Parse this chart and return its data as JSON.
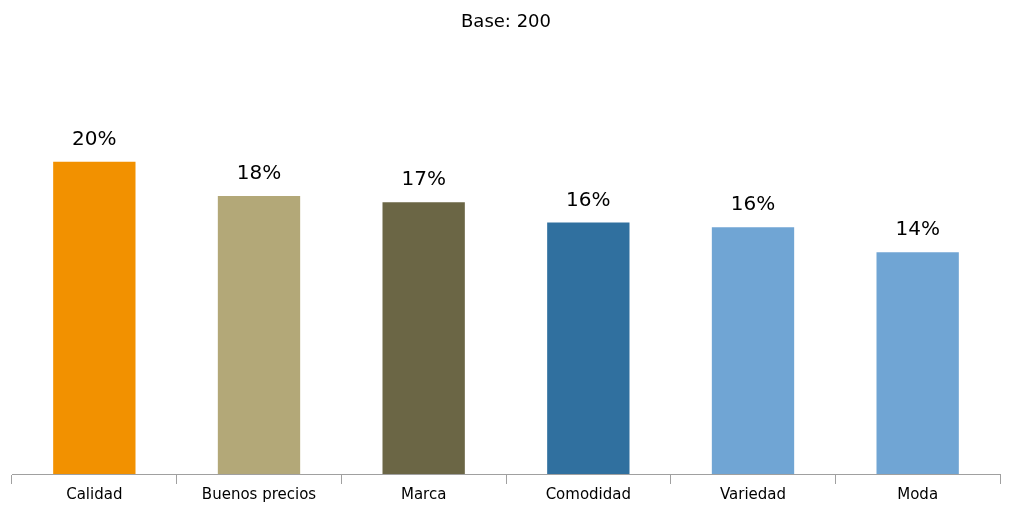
{
  "chart_data": {
    "type": "bar",
    "title": "Base: 200",
    "categories": [
      "Calidad",
      "Buenos precios",
      "Marca",
      "Comodidad",
      "Variedad",
      "Moda"
    ],
    "values": [
      20,
      17.8,
      17.4,
      16.1,
      15.8,
      14.2
    ],
    "value_labels": [
      "20%",
      "18%",
      "17%",
      "16%",
      "16%",
      "14%"
    ],
    "colors": [
      "#f29100",
      "#b3a878",
      "#6b6645",
      "#30709f",
      "#70a5d4",
      "#70a5d4"
    ],
    "tick_labels": "x",
    "legend": false
  }
}
